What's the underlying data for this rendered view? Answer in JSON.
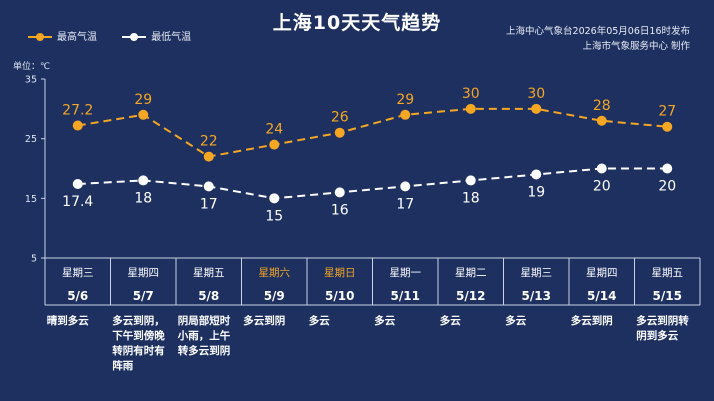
{
  "title": "上海10天天气趋势",
  "issuer": {
    "line1": "上海中心气象台2026年05月06日16时发布",
    "line2": "上海市气象服务中心  制作"
  },
  "legend": {
    "high_label": "最高气温",
    "low_label": "最低气温"
  },
  "unit_label": "单位：℃",
  "colors": {
    "background": "#1d3060",
    "high": "#f5a623",
    "low": "#ffffff",
    "weekend": "#f5a623",
    "grid": "#c9d2e6"
  },
  "chart_data": {
    "type": "line",
    "categories": [
      "5/6",
      "5/7",
      "5/8",
      "5/9",
      "5/10",
      "5/11",
      "5/12",
      "5/13",
      "5/14",
      "5/15"
    ],
    "ylim": [
      5,
      35
    ],
    "yticks": [
      5,
      15,
      25,
      35
    ],
    "series": [
      {
        "name": "最高气温",
        "values": [
          27.2,
          29,
          22,
          24,
          26,
          29,
          30,
          30,
          28,
          27
        ]
      },
      {
        "name": "最低气温",
        "values": [
          17.4,
          18,
          17,
          15,
          16,
          17,
          18,
          19,
          20,
          20
        ]
      }
    ]
  },
  "days": [
    {
      "weekday": "星期三",
      "date": "5/6",
      "weather": "晴到多云",
      "weekend": false
    },
    {
      "weekday": "星期四",
      "date": "5/7",
      "weather": "多云到阴，下午到傍晚转阴有时有阵雨",
      "weekend": false
    },
    {
      "weekday": "星期五",
      "date": "5/8",
      "weather": "阴局部短时小雨，上午转多云到阴",
      "weekend": false
    },
    {
      "weekday": "星期六",
      "date": "5/9",
      "weather": "多云到阴",
      "weekend": true
    },
    {
      "weekday": "星期日",
      "date": "5/10",
      "weather": "多云",
      "weekend": true
    },
    {
      "weekday": "星期一",
      "date": "5/11",
      "weather": "多云",
      "weekend": false
    },
    {
      "weekday": "星期二",
      "date": "5/12",
      "weather": "多云",
      "weekend": false
    },
    {
      "weekday": "星期三",
      "date": "5/13",
      "weather": "多云",
      "weekend": false
    },
    {
      "weekday": "星期四",
      "date": "5/14",
      "weather": "多云到阴",
      "weekend": false
    },
    {
      "weekday": "星期五",
      "date": "5/15",
      "weather": "多云到阴转阴到多云",
      "weekend": false
    }
  ]
}
